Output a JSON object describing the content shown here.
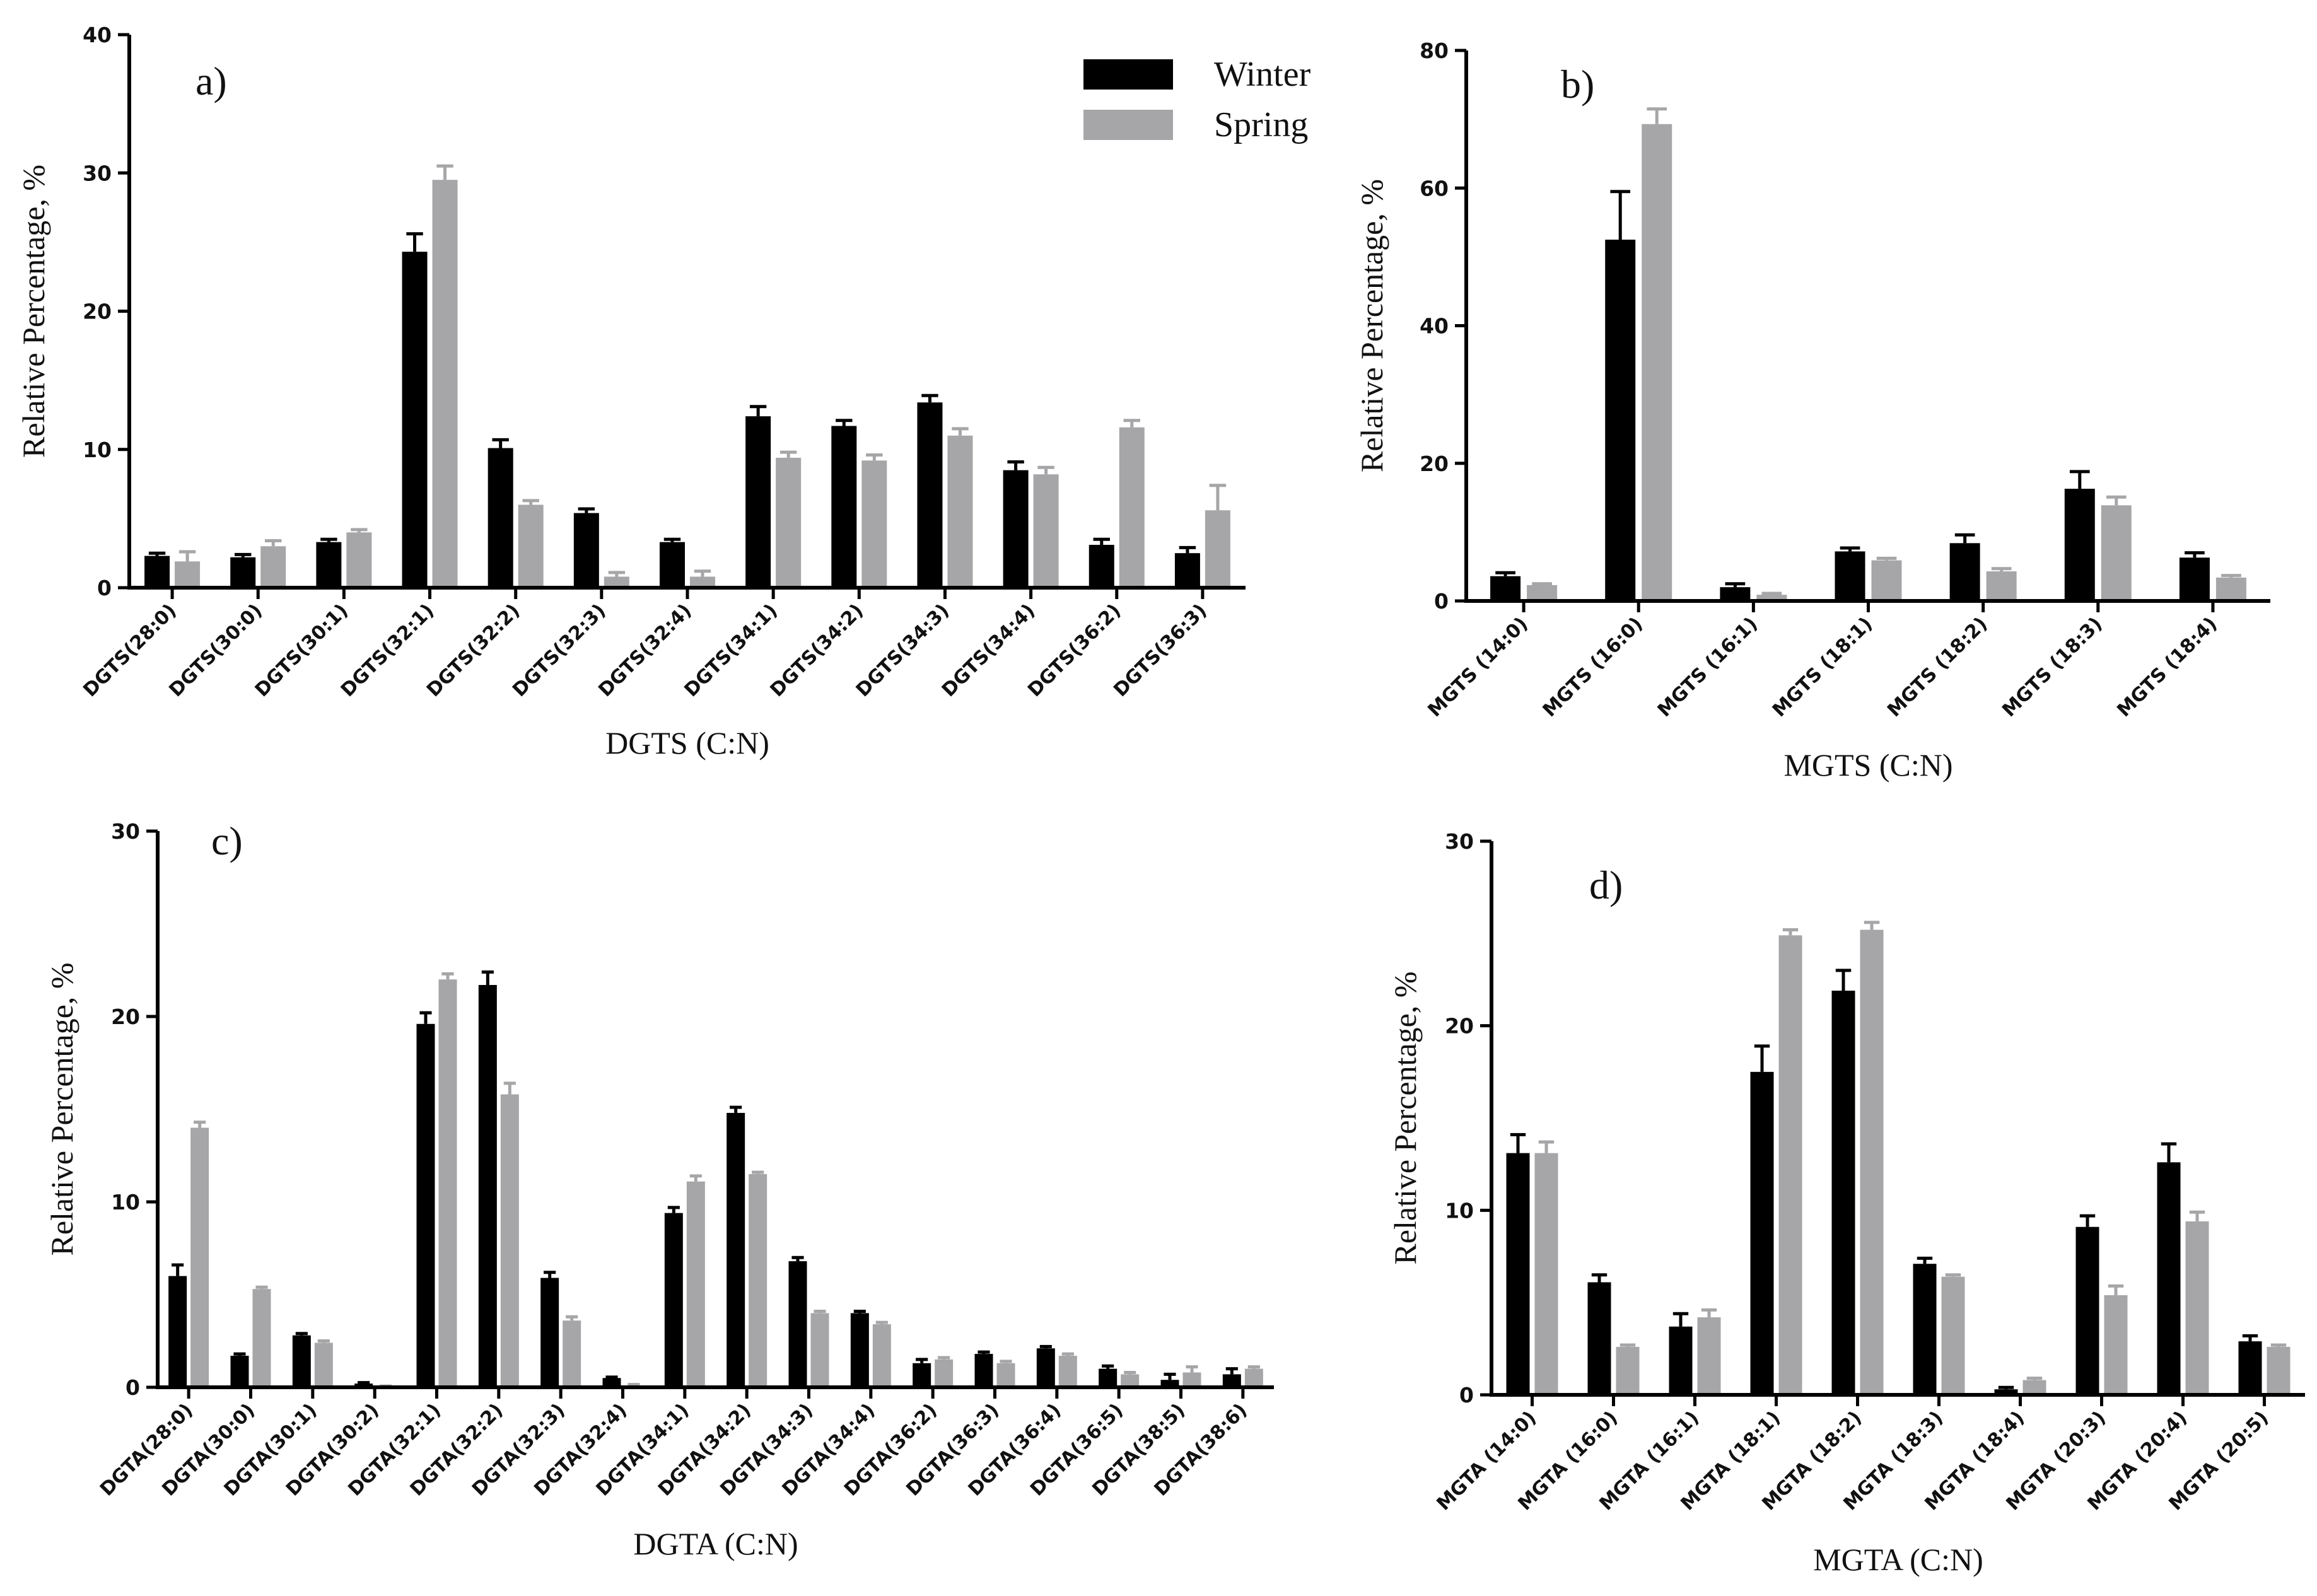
{
  "legend": {
    "items": [
      {
        "label": "Winter",
        "color": "#000000"
      },
      {
        "label": "Spring",
        "color": "#a6a6a8"
      }
    ]
  },
  "colors": {
    "winter": "#000000",
    "spring": "#a6a6a8",
    "axis": "#000000"
  },
  "chart_data": [
    {
      "type": "bar",
      "panel_label": "a)",
      "xlabel": "DGTS (C:N)",
      "ylabel": "Relative Percentage, %",
      "ylim": [
        0,
        40
      ],
      "yticks": [
        0,
        10,
        20,
        30,
        40
      ],
      "categories": [
        "DGTS(28:0)",
        "DGTS(30:0)",
        "DGTS(30:1)",
        "DGTS(32:1)",
        "DGTS(32:2)",
        "DGTS(32:3)",
        "DGTS(32:4)",
        "DGTS(34:1)",
        "DGTS(34:2)",
        "DGTS(34:3)",
        "DGTS(34:4)",
        "DGTS(36:2)",
        "DGTS(36:3)"
      ],
      "series": [
        {
          "name": "Winter",
          "values": [
            2.3,
            2.2,
            3.3,
            24.3,
            10.1,
            5.4,
            3.3,
            12.4,
            11.7,
            13.4,
            8.5,
            3.1,
            2.5
          ],
          "errors": [
            0.2,
            0.2,
            0.2,
            1.3,
            0.6,
            0.3,
            0.2,
            0.7,
            0.4,
            0.5,
            0.6,
            0.4,
            0.4
          ]
        },
        {
          "name": "Spring",
          "values": [
            1.9,
            3.0,
            4.0,
            29.5,
            6.0,
            0.8,
            0.8,
            9.4,
            9.2,
            11.0,
            8.2,
            11.6,
            5.6
          ],
          "errors": [
            0.7,
            0.4,
            0.2,
            1.0,
            0.3,
            0.3,
            0.4,
            0.4,
            0.4,
            0.5,
            0.5,
            0.5,
            1.8
          ]
        }
      ]
    },
    {
      "type": "bar",
      "panel_label": "b)",
      "xlabel": "MGTS (C:N)",
      "ylabel": "Relative Percentage, %",
      "ylim": [
        0,
        80
      ],
      "yticks": [
        0,
        20,
        40,
        60,
        80
      ],
      "categories": [
        "MGTS (14:0)",
        "MGTS (16:0)",
        "MGTS (16:1)",
        "MGTS (18:1)",
        "MGTS (18:2)",
        "MGTS (18:3)",
        "MGTS (18:4)"
      ],
      "series": [
        {
          "name": "Winter",
          "values": [
            3.6,
            52.5,
            2.0,
            7.2,
            8.4,
            16.3,
            6.3
          ],
          "errors": [
            0.5,
            7.0,
            0.5,
            0.5,
            1.2,
            2.5,
            0.7
          ]
        },
        {
          "name": "Spring",
          "values": [
            2.3,
            69.3,
            0.9,
            5.9,
            4.3,
            13.9,
            3.4
          ],
          "errors": [
            0.2,
            2.2,
            0.2,
            0.3,
            0.4,
            1.2,
            0.3
          ]
        }
      ]
    },
    {
      "type": "bar",
      "panel_label": "c)",
      "xlabel": "DGTA (C:N)",
      "ylabel": "Relative Percentage, %",
      "ylim": [
        0,
        30
      ],
      "yticks": [
        0,
        10,
        20,
        30
      ],
      "categories": [
        "DGTA(28:0)",
        "DGTA(30:0)",
        "DGTA(30:1)",
        "DGTA(30:2)",
        "DGTA(32:1)",
        "DGTA(32:2)",
        "DGTA(32:3)",
        "DGTA(32:4)",
        "DGTA(34:1)",
        "DGTA(34:2)",
        "DGTA(34:3)",
        "DGTA(34:4)",
        "DGTA(36:2)",
        "DGTA(36:3)",
        "DGTA(36:4)",
        "DGTA(36:5)",
        "DGTA(38:5)",
        "DGTA(38:6)"
      ],
      "series": [
        {
          "name": "Winter",
          "values": [
            6.0,
            1.7,
            2.8,
            0.2,
            19.6,
            21.7,
            5.9,
            0.5,
            9.4,
            14.8,
            6.8,
            4.0,
            1.3,
            1.8,
            2.1,
            1.0,
            0.4,
            0.7
          ],
          "errors": [
            0.6,
            0.1,
            0.1,
            0.05,
            0.6,
            0.7,
            0.3,
            0.05,
            0.3,
            0.3,
            0.2,
            0.1,
            0.2,
            0.1,
            0.1,
            0.15,
            0.3,
            0.3
          ]
        },
        {
          "name": "Spring",
          "values": [
            14.0,
            5.3,
            2.4,
            0.05,
            22.0,
            15.8,
            3.6,
            0.1,
            11.1,
            11.5,
            4.0,
            3.4,
            1.5,
            1.3,
            1.7,
            0.7,
            0.8,
            1.0
          ],
          "errors": [
            0.3,
            0.1,
            0.1,
            0.02,
            0.3,
            0.6,
            0.2,
            0.05,
            0.3,
            0.1,
            0.1,
            0.1,
            0.1,
            0.1,
            0.1,
            0.1,
            0.3,
            0.1
          ]
        }
      ]
    },
    {
      "type": "bar",
      "panel_label": "d)",
      "xlabel": "MGTA (C:N)",
      "ylabel": "Relative Percentage, %",
      "ylim": [
        0,
        30
      ],
      "yticks": [
        0,
        10,
        20,
        30
      ],
      "categories": [
        "MGTA (14:0)",
        "MGTA (16:0)",
        "MGTA (16:1)",
        "MGTA (18:1)",
        "MGTA (18:2)",
        "MGTA (18:3)",
        "MGTA (18:4)",
        "MGTA (20:3)",
        "MGTA (20:4)",
        "MGTA (20:5)"
      ],
      "series": [
        {
          "name": "Winter",
          "values": [
            13.1,
            6.1,
            3.7,
            17.5,
            21.9,
            7.1,
            0.3,
            9.1,
            12.6,
            2.9
          ],
          "errors": [
            1.0,
            0.4,
            0.7,
            1.4,
            1.1,
            0.3,
            0.1,
            0.6,
            1.0,
            0.3
          ]
        },
        {
          "name": "Spring",
          "values": [
            13.1,
            2.6,
            4.2,
            24.9,
            25.2,
            6.4,
            0.8,
            5.4,
            9.4,
            2.6
          ],
          "errors": [
            0.6,
            0.1,
            0.4,
            0.3,
            0.4,
            0.1,
            0.1,
            0.5,
            0.5,
            0.1
          ]
        }
      ]
    }
  ]
}
